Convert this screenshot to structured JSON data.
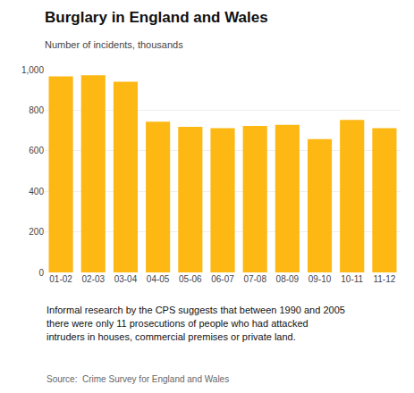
{
  "chart_data": {
    "type": "bar",
    "title": "Burglary in England and Wales",
    "subtitle": "Number of incidents, thousands",
    "categories": [
      "01-02",
      "02-03",
      "03-04",
      "04-05",
      "05-06",
      "06-07",
      "07-08",
      "08-09",
      "09-10",
      "10-11",
      "11-12"
    ],
    "values": [
      967,
      973,
      940,
      743,
      718,
      711,
      722,
      728,
      657,
      752,
      711
    ],
    "color": "#FDB813",
    "ylim": [
      0,
      1000
    ],
    "yticks": [
      0,
      200,
      400,
      600,
      800,
      {
        "value": 1000,
        "label": "1,000"
      }
    ],
    "grid": true,
    "annotations": [
      "Informal research by the CPS suggests that between 1990 and 2005",
      "there were only 11 prosecutions of people who had attacked",
      "intruders in houses, commercial premises or private land."
    ],
    "source": "Source:  Crime Survey for England and Wales"
  }
}
